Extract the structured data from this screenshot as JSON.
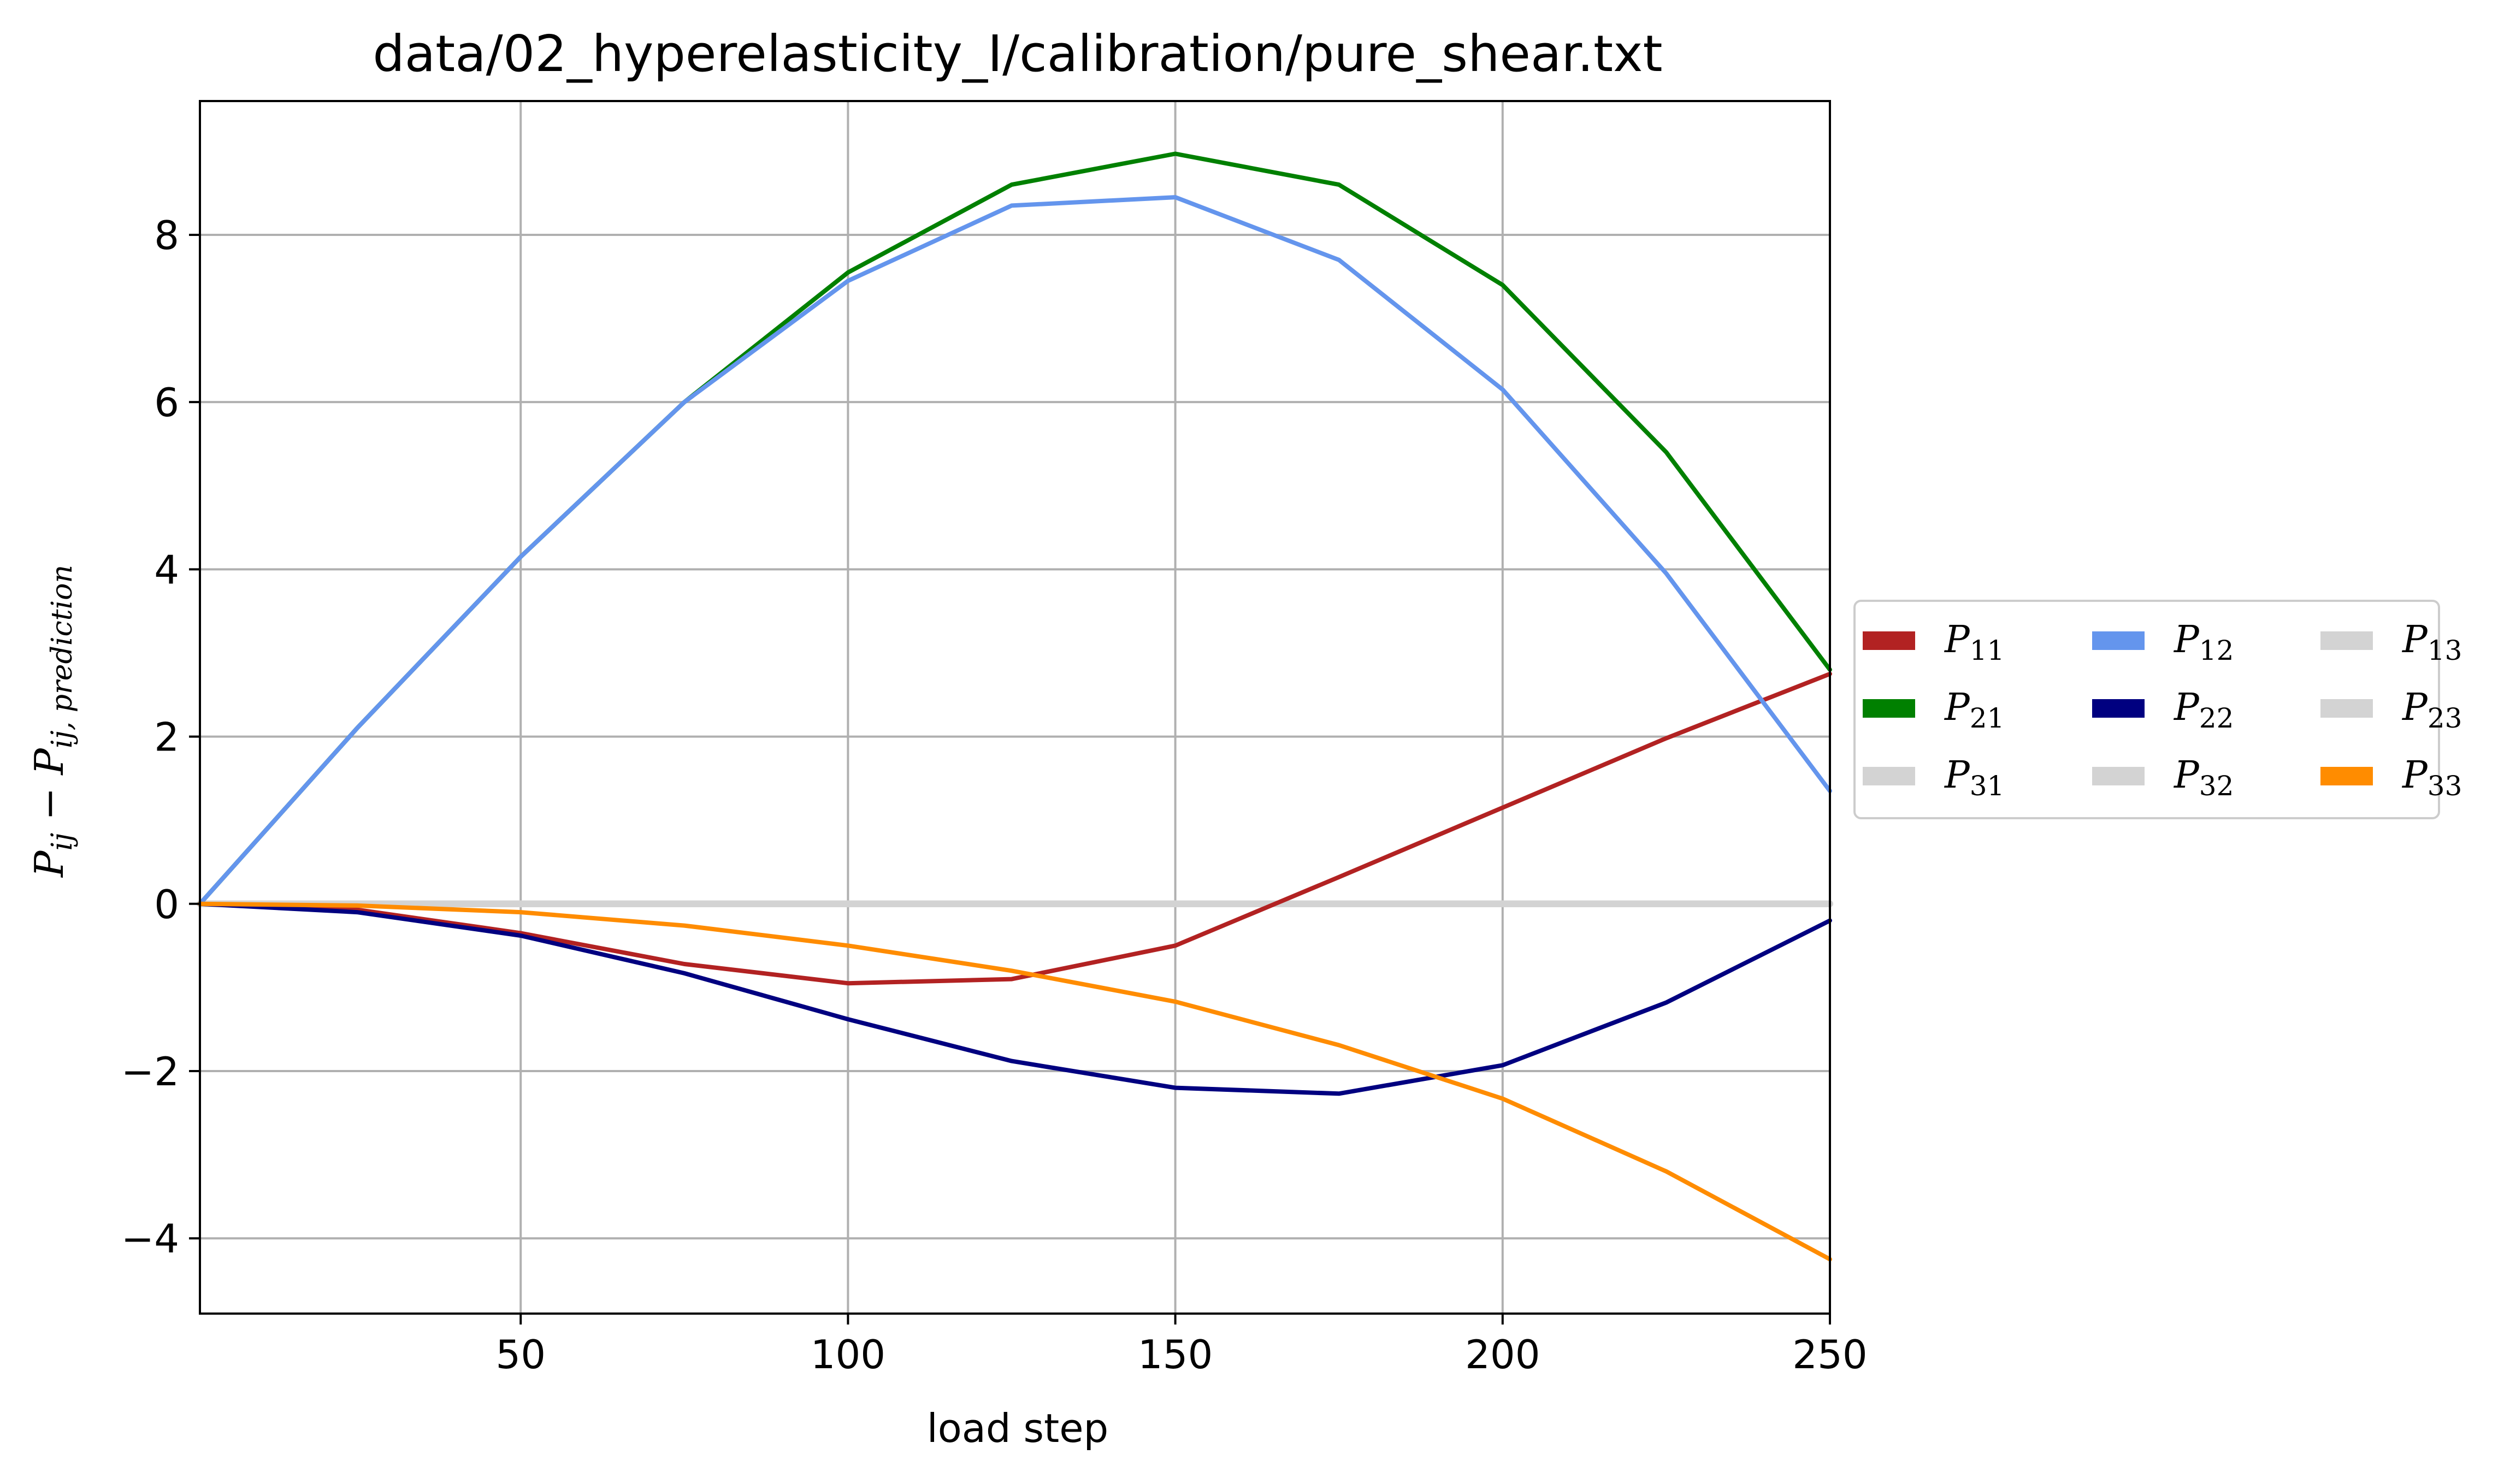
{
  "chart_data": {
    "type": "line",
    "title": "data/02_hyperelasticity_I/calibration/pure_shear.txt",
    "xlabel": "load step",
    "ylabel": {
      "lhs_main": "P",
      "lhs_sub": "ij",
      "op": " − ",
      "rhs_main": "P",
      "rhs_sub": "ij, prediction"
    },
    "xlim": [
      1,
      250
    ],
    "ylim": [
      -4.9,
      9.6
    ],
    "xticks": [
      50,
      100,
      150,
      200,
      250
    ],
    "yticks": [
      -4,
      -2,
      0,
      2,
      4,
      6,
      8
    ],
    "ytick_labels": [
      "−4",
      "−2",
      "0",
      "2",
      "4",
      "6",
      "8"
    ],
    "grid": true,
    "legend": {
      "placement": "right-outside",
      "columns": 3
    },
    "x": [
      1,
      25,
      50,
      75,
      100,
      125,
      150,
      175,
      200,
      225,
      250
    ],
    "series": [
      {
        "name": "P11",
        "label_main": "P",
        "label_sub": "11",
        "color": "#b22222",
        "values": [
          0.0,
          -0.07,
          -0.35,
          -0.72,
          -0.95,
          -0.9,
          -0.5,
          0.32,
          1.15,
          1.98,
          2.75
        ]
      },
      {
        "name": "P21",
        "label_main": "P",
        "label_sub": "21",
        "color": "#008000",
        "values": [
          0.0,
          2.1,
          4.15,
          6.0,
          7.55,
          8.6,
          8.97,
          8.6,
          7.4,
          5.4,
          2.8
        ]
      },
      {
        "name": "P31",
        "label_main": "P",
        "label_sub": "31",
        "color": "#d3d3d3",
        "values": [
          0,
          0,
          0,
          0,
          0,
          0,
          0,
          0,
          0,
          0,
          0
        ]
      },
      {
        "name": "P12",
        "label_main": "P",
        "label_sub": "12",
        "color": "#6495ed",
        "values": [
          0.0,
          2.1,
          4.15,
          6.0,
          7.45,
          8.35,
          8.45,
          7.7,
          6.15,
          3.95,
          1.35
        ]
      },
      {
        "name": "P22",
        "label_main": "P",
        "label_sub": "22",
        "color": "#000080",
        "values": [
          0.0,
          -0.1,
          -0.38,
          -0.83,
          -1.38,
          -1.88,
          -2.2,
          -2.27,
          -1.93,
          -1.18,
          -0.2
        ]
      },
      {
        "name": "P32",
        "label_main": "P",
        "label_sub": "32",
        "color": "#d3d3d3",
        "values": [
          0,
          0,
          0,
          0,
          0,
          0,
          0,
          0,
          0,
          0,
          0
        ]
      },
      {
        "name": "P13",
        "label_main": "P",
        "label_sub": "13",
        "color": "#d3d3d3",
        "values": [
          0,
          0,
          0,
          0,
          0,
          0,
          0,
          0,
          0,
          0,
          0
        ]
      },
      {
        "name": "P23",
        "label_main": "P",
        "label_sub": "23",
        "color": "#d3d3d3",
        "values": [
          0,
          0,
          0,
          0,
          0,
          0,
          0,
          0,
          0,
          0,
          0
        ]
      },
      {
        "name": "P33",
        "label_main": "P",
        "label_sub": "33",
        "color": "#ff8c00",
        "values": [
          0.0,
          -0.02,
          -0.1,
          -0.26,
          -0.5,
          -0.8,
          -1.17,
          -1.69,
          -2.33,
          -3.2,
          -4.25
        ]
      }
    ]
  }
}
